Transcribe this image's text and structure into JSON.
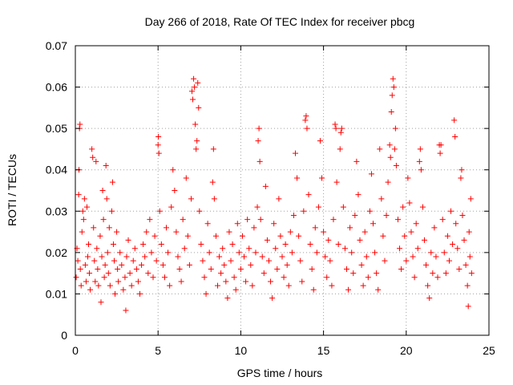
{
  "chart_data": {
    "type": "scatter",
    "title": "Day 266 of 2018, Rate Of TEC Index for receiver pbcg",
    "xlabel": "GPS time / hours",
    "ylabel": "ROTI / TECUs",
    "xlim": [
      0,
      25
    ],
    "ylim": [
      0,
      0.07
    ],
    "xticks": [
      "0",
      "5",
      "10",
      "15",
      "20",
      "25"
    ],
    "yticks": [
      "0",
      "0.01",
      "0.02",
      "0.03",
      "0.04",
      "0.05",
      "0.06",
      "0.07"
    ],
    "grid": true,
    "marker": "plus",
    "series_color": "#ff0000",
    "series": [
      {
        "name": "ROTI",
        "points": [
          [
            0.05,
            0.014
          ],
          [
            0.1,
            0.021
          ],
          [
            0.15,
            0.018
          ],
          [
            0.2,
            0.034
          ],
          [
            0.22,
            0.04
          ],
          [
            0.25,
            0.05
          ],
          [
            0.28,
            0.051
          ],
          [
            0.3,
            0.016
          ],
          [
            0.35,
            0.012
          ],
          [
            0.4,
            0.025
          ],
          [
            0.45,
            0.03
          ],
          [
            0.5,
            0.028
          ],
          [
            0.55,
            0.033
          ],
          [
            0.6,
            0.017
          ],
          [
            0.65,
            0.013
          ],
          [
            0.7,
            0.031
          ],
          [
            0.75,
            0.019
          ],
          [
            0.8,
            0.022
          ],
          [
            0.85,
            0.015
          ],
          [
            0.9,
            0.011
          ],
          [
            1.0,
            0.045
          ],
          [
            1.05,
            0.043
          ],
          [
            1.1,
            0.026
          ],
          [
            1.15,
            0.018
          ],
          [
            1.2,
            0.013
          ],
          [
            1.25,
            0.042
          ],
          [
            1.3,
            0.021
          ],
          [
            1.35,
            0.016
          ],
          [
            1.4,
            0.012
          ],
          [
            1.5,
            0.024
          ],
          [
            1.55,
            0.008
          ],
          [
            1.6,
            0.019
          ],
          [
            1.65,
            0.035
          ],
          [
            1.7,
            0.028
          ],
          [
            1.75,
            0.014
          ],
          [
            1.8,
            0.017
          ],
          [
            1.85,
            0.041
          ],
          [
            1.9,
            0.033
          ],
          [
            1.95,
            0.02
          ],
          [
            2.0,
            0.015
          ],
          [
            2.05,
            0.026
          ],
          [
            2.1,
            0.012
          ],
          [
            2.2,
            0.03
          ],
          [
            2.25,
            0.037
          ],
          [
            2.3,
            0.022
          ],
          [
            2.35,
            0.018
          ],
          [
            2.4,
            0.01
          ],
          [
            2.5,
            0.025
          ],
          [
            2.55,
            0.016
          ],
          [
            2.6,
            0.013
          ],
          [
            2.7,
            0.02
          ],
          [
            2.8,
            0.017
          ],
          [
            2.9,
            0.011
          ],
          [
            3.0,
            0.014
          ],
          [
            3.05,
            0.006
          ],
          [
            3.1,
            0.019
          ],
          [
            3.2,
            0.023
          ],
          [
            3.3,
            0.015
          ],
          [
            3.4,
            0.012
          ],
          [
            3.5,
            0.018
          ],
          [
            3.6,
            0.021
          ],
          [
            3.7,
            0.016
          ],
          [
            3.8,
            0.013
          ],
          [
            3.9,
            0.01
          ],
          [
            4.0,
            0.017
          ],
          [
            4.1,
            0.022
          ],
          [
            4.2,
            0.019
          ],
          [
            4.3,
            0.025
          ],
          [
            4.4,
            0.015
          ],
          [
            4.5,
            0.028
          ],
          [
            4.6,
            0.02
          ],
          [
            4.7,
            0.014
          ],
          [
            4.8,
            0.024
          ],
          [
            4.9,
            0.018
          ],
          [
            5.0,
            0.046
          ],
          [
            5.02,
            0.048
          ],
          [
            5.05,
            0.044
          ],
          [
            5.1,
            0.03
          ],
          [
            5.2,
            0.022
          ],
          [
            5.3,
            0.017
          ],
          [
            5.4,
            0.014
          ],
          [
            5.5,
            0.026
          ],
          [
            5.6,
            0.02
          ],
          [
            5.7,
            0.012
          ],
          [
            5.8,
            0.031
          ],
          [
            5.9,
            0.04
          ],
          [
            6.0,
            0.035
          ],
          [
            6.1,
            0.025
          ],
          [
            6.2,
            0.019
          ],
          [
            6.3,
            0.016
          ],
          [
            6.4,
            0.013
          ],
          [
            6.5,
            0.028
          ],
          [
            6.6,
            0.021
          ],
          [
            6.7,
            0.038
          ],
          [
            6.8,
            0.024
          ],
          [
            6.9,
            0.017
          ],
          [
            7.0,
            0.033
          ],
          [
            7.05,
            0.059
          ],
          [
            7.1,
            0.057
          ],
          [
            7.15,
            0.062
          ],
          [
            7.2,
            0.06
          ],
          [
            7.25,
            0.051
          ],
          [
            7.3,
            0.045
          ],
          [
            7.35,
            0.047
          ],
          [
            7.4,
            0.061
          ],
          [
            7.45,
            0.055
          ],
          [
            7.5,
            0.03
          ],
          [
            7.6,
            0.022
          ],
          [
            7.7,
            0.018
          ],
          [
            7.8,
            0.014
          ],
          [
            7.9,
            0.01
          ],
          [
            8.0,
            0.027
          ],
          [
            8.1,
            0.02
          ],
          [
            8.2,
            0.016
          ],
          [
            8.3,
            0.037
          ],
          [
            8.35,
            0.045
          ],
          [
            8.4,
            0.033
          ],
          [
            8.5,
            0.024
          ],
          [
            8.6,
            0.012
          ],
          [
            8.7,
            0.019
          ],
          [
            8.8,
            0.015
          ],
          [
            8.9,
            0.021
          ],
          [
            9.0,
            0.017
          ],
          [
            9.1,
            0.013
          ],
          [
            9.2,
            0.009
          ],
          [
            9.3,
            0.025
          ],
          [
            9.4,
            0.018
          ],
          [
            9.5,
            0.022
          ],
          [
            9.6,
            0.014
          ],
          [
            9.7,
            0.011
          ],
          [
            9.8,
            0.027
          ],
          [
            9.9,
            0.02
          ],
          [
            10.0,
            0.016
          ],
          [
            10.1,
            0.024
          ],
          [
            10.2,
            0.019
          ],
          [
            10.3,
            0.013
          ],
          [
            10.4,
            0.028
          ],
          [
            10.5,
            0.021
          ],
          [
            10.6,
            0.017
          ],
          [
            10.7,
            0.012
          ],
          [
            10.8,
            0.026
          ],
          [
            10.9,
            0.02
          ],
          [
            11.0,
            0.031
          ],
          [
            11.05,
            0.047
          ],
          [
            11.1,
            0.05
          ],
          [
            11.15,
            0.042
          ],
          [
            11.2,
            0.028
          ],
          [
            11.3,
            0.019
          ],
          [
            11.4,
            0.015
          ],
          [
            11.5,
            0.036
          ],
          [
            11.6,
            0.023
          ],
          [
            11.7,
            0.018
          ],
          [
            11.8,
            0.013
          ],
          [
            11.9,
            0.009
          ],
          [
            12.0,
            0.027
          ],
          [
            12.1,
            0.021
          ],
          [
            12.2,
            0.016
          ],
          [
            12.3,
            0.033
          ],
          [
            12.4,
            0.024
          ],
          [
            12.5,
            0.019
          ],
          [
            12.6,
            0.014
          ],
          [
            12.7,
            0.022
          ],
          [
            12.8,
            0.017
          ],
          [
            12.9,
            0.012
          ],
          [
            13.0,
            0.025
          ],
          [
            13.1,
            0.02
          ],
          [
            13.2,
            0.029
          ],
          [
            13.3,
            0.044
          ],
          [
            13.4,
            0.038
          ],
          [
            13.5,
            0.024
          ],
          [
            13.6,
            0.018
          ],
          [
            13.7,
            0.013
          ],
          [
            13.8,
            0.03
          ],
          [
            13.9,
            0.052
          ],
          [
            13.95,
            0.053
          ],
          [
            14.0,
            0.05
          ],
          [
            14.1,
            0.034
          ],
          [
            14.2,
            0.022
          ],
          [
            14.3,
            0.016
          ],
          [
            14.4,
            0.011
          ],
          [
            14.5,
            0.026
          ],
          [
            14.6,
            0.02
          ],
          [
            14.7,
            0.031
          ],
          [
            14.8,
            0.047
          ],
          [
            14.9,
            0.038
          ],
          [
            15.0,
            0.025
          ],
          [
            15.1,
            0.019
          ],
          [
            15.2,
            0.014
          ],
          [
            15.3,
            0.023
          ],
          [
            15.4,
            0.018
          ],
          [
            15.5,
            0.012
          ],
          [
            15.6,
            0.028
          ],
          [
            15.7,
            0.051
          ],
          [
            15.75,
            0.05
          ],
          [
            15.8,
            0.037
          ],
          [
            15.9,
            0.022
          ],
          [
            16.0,
            0.045
          ],
          [
            16.05,
            0.049
          ],
          [
            16.1,
            0.05
          ],
          [
            16.2,
            0.031
          ],
          [
            16.3,
            0.021
          ],
          [
            16.4,
            0.016
          ],
          [
            16.5,
            0.011
          ],
          [
            16.6,
            0.026
          ],
          [
            16.7,
            0.02
          ],
          [
            16.8,
            0.015
          ],
          [
            16.9,
            0.029
          ],
          [
            17.0,
            0.042
          ],
          [
            17.1,
            0.034
          ],
          [
            17.2,
            0.023
          ],
          [
            17.3,
            0.017
          ],
          [
            17.4,
            0.012
          ],
          [
            17.5,
            0.025
          ],
          [
            17.6,
            0.019
          ],
          [
            17.7,
            0.014
          ],
          [
            17.8,
            0.03
          ],
          [
            17.9,
            0.039
          ],
          [
            18.0,
            0.027
          ],
          [
            18.1,
            0.02
          ],
          [
            18.2,
            0.015
          ],
          [
            18.3,
            0.011
          ],
          [
            18.4,
            0.045
          ],
          [
            18.5,
            0.033
          ],
          [
            18.6,
            0.024
          ],
          [
            18.7,
            0.018
          ],
          [
            18.8,
            0.029
          ],
          [
            18.9,
            0.037
          ],
          [
            19.0,
            0.046
          ],
          [
            19.05,
            0.043
          ],
          [
            19.1,
            0.054
          ],
          [
            19.15,
            0.058
          ],
          [
            19.2,
            0.062
          ],
          [
            19.25,
            0.06
          ],
          [
            19.3,
            0.045
          ],
          [
            19.35,
            0.05
          ],
          [
            19.4,
            0.041
          ],
          [
            19.5,
            0.028
          ],
          [
            19.6,
            0.021
          ],
          [
            19.7,
            0.016
          ],
          [
            19.8,
            0.031
          ],
          [
            19.9,
            0.024
          ],
          [
            20.0,
            0.018
          ],
          [
            20.1,
            0.038
          ],
          [
            20.2,
            0.032
          ],
          [
            20.3,
            0.025
          ],
          [
            20.4,
            0.019
          ],
          [
            20.5,
            0.014
          ],
          [
            20.6,
            0.027
          ],
          [
            20.7,
            0.021
          ],
          [
            20.8,
            0.042
          ],
          [
            20.85,
            0.045
          ],
          [
            20.9,
            0.04
          ],
          [
            21.0,
            0.031
          ],
          [
            21.1,
            0.023
          ],
          [
            21.2,
            0.017
          ],
          [
            21.3,
            0.012
          ],
          [
            21.4,
            0.009
          ],
          [
            21.5,
            0.02
          ],
          [
            21.6,
            0.015
          ],
          [
            21.7,
            0.026
          ],
          [
            21.8,
            0.019
          ],
          [
            21.9,
            0.014
          ],
          [
            22.0,
            0.046
          ],
          [
            22.05,
            0.044
          ],
          [
            22.1,
            0.046
          ],
          [
            22.2,
            0.028
          ],
          [
            22.3,
            0.02
          ],
          [
            22.4,
            0.015
          ],
          [
            22.5,
            0.024
          ],
          [
            22.6,
            0.018
          ],
          [
            22.7,
            0.03
          ],
          [
            22.8,
            0.022
          ],
          [
            22.9,
            0.052
          ],
          [
            22.95,
            0.048
          ],
          [
            23.0,
            0.027
          ],
          [
            23.1,
            0.021
          ],
          [
            23.2,
            0.016
          ],
          [
            23.3,
            0.038
          ],
          [
            23.35,
            0.04
          ],
          [
            23.4,
            0.029
          ],
          [
            23.5,
            0.023
          ],
          [
            23.6,
            0.017
          ],
          [
            23.7,
            0.012
          ],
          [
            23.75,
            0.007
          ],
          [
            23.8,
            0.025
          ],
          [
            23.85,
            0.019
          ],
          [
            23.9,
            0.033
          ],
          [
            23.95,
            0.015
          ]
        ]
      }
    ]
  }
}
